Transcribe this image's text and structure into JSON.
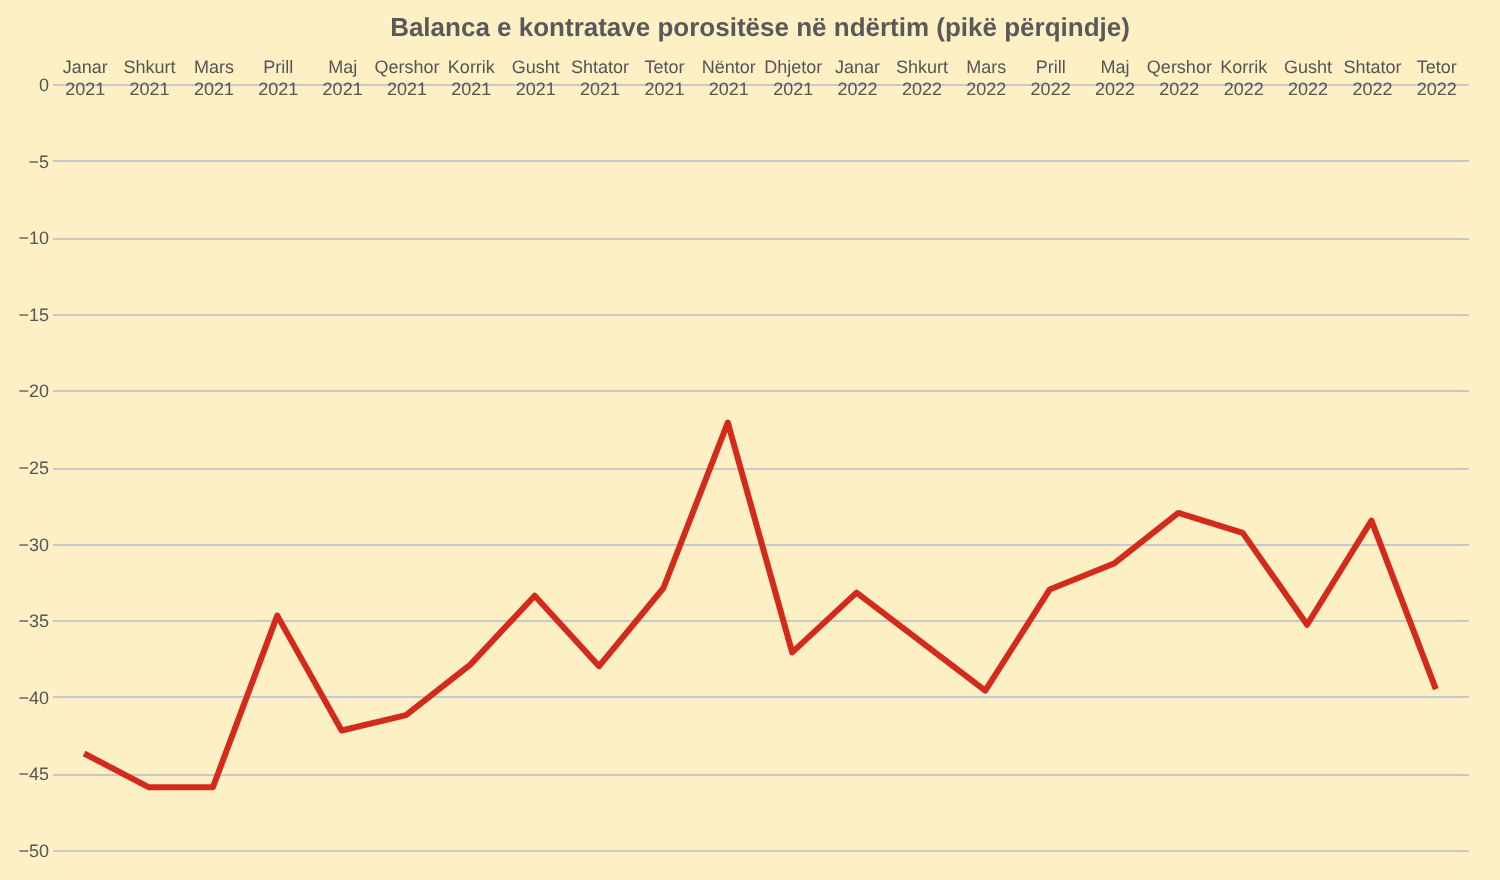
{
  "chart_data": {
    "type": "line",
    "title": "Balanca e kontratave porositëse në ndërtim (pikë përqindje)",
    "categories": [
      "Janar 2021",
      "Shkurt 2021",
      "Mars 2021",
      "Prill 2021",
      "Maj 2021",
      "Qershor 2021",
      "Korrik 2021",
      "Gusht 2021",
      "Shtator 2021",
      "Tetor 2021",
      "Nëntor 2021",
      "Dhjetor 2021",
      "Janar 2022",
      "Shkurt 2022",
      "Mars 2022",
      "Prill 2022",
      "Maj 2022",
      "Qershor 2022",
      "Korrik 2022",
      "Gusht 2022",
      "Shtator 2022",
      "Tetor 2022"
    ],
    "series": [
      {
        "color": "#d42a1c",
        "values": [
          -43.7,
          -45.9,
          -45.9,
          -34.7,
          -42.2,
          -41.2,
          -37.9,
          -33.4,
          -38.0,
          -32.9,
          -22.1,
          -37.1,
          -33.2,
          -36.4,
          -39.6,
          -33.0,
          -31.3,
          -28.0,
          -29.3,
          -35.3,
          -28.5,
          -39.5
        ]
      }
    ],
    "ylim": [
      -50,
      0
    ],
    "yticks": [
      0,
      -5,
      -10,
      -15,
      -20,
      -25,
      -30,
      -35,
      -40,
      -45,
      -50
    ],
    "grid": "y",
    "marker": "none",
    "line_style": "solid"
  }
}
